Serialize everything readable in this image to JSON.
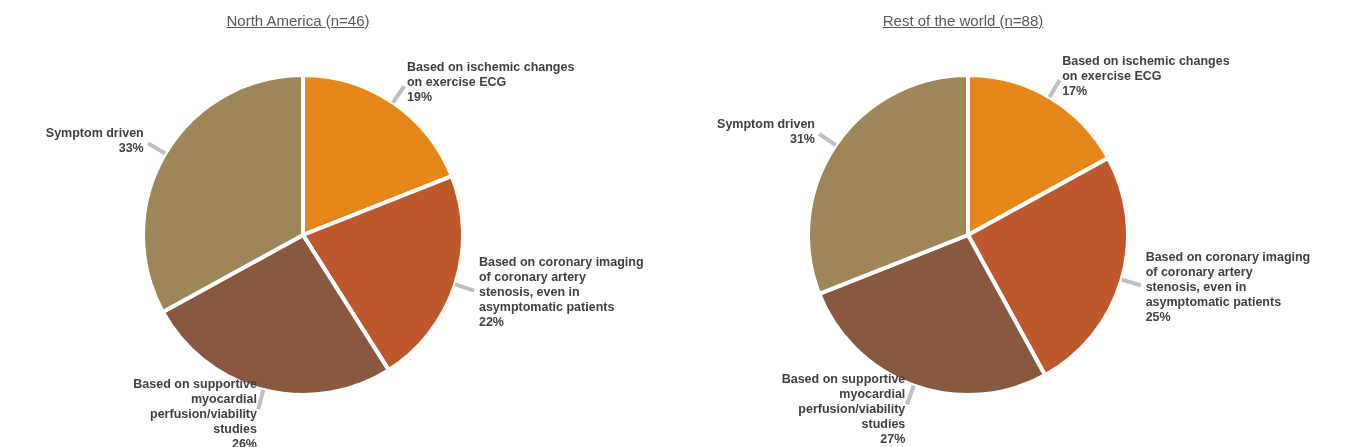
{
  "chart_data": [
    {
      "type": "pie",
      "title": "North America (n=46)",
      "categories": [
        "Based on ischemic changes on exercise ECG",
        "Based on coronary imaging of coronary artery stenosis, even in asymptomatic patients",
        "Based on supportive myocardial perfusion/viability studies",
        "Symptom driven"
      ],
      "values": [
        19,
        22,
        26,
        33
      ],
      "value_labels": [
        "19%",
        "22%",
        "26%",
        "33%"
      ],
      "colors": [
        "#e5861a",
        "#bd582c",
        "#8a573f",
        "#9e8658"
      ],
      "legend": false
    },
    {
      "type": "pie",
      "title": "Rest of the world (n=88)",
      "categories": [
        "Based on ischemic changes on exercise ECG",
        "Based on coronary imaging of coronary artery stenosis, even in asymptomatic patients",
        "Based on supportive myocardial perfusion/viability studies",
        "Symptom driven"
      ],
      "values": [
        17,
        25,
        27,
        31
      ],
      "value_labels": [
        "17%",
        "25%",
        "27%",
        "31%"
      ],
      "colors": [
        "#e5861a",
        "#bd582c",
        "#8a573f",
        "#9e8658"
      ],
      "legend": false
    }
  ]
}
